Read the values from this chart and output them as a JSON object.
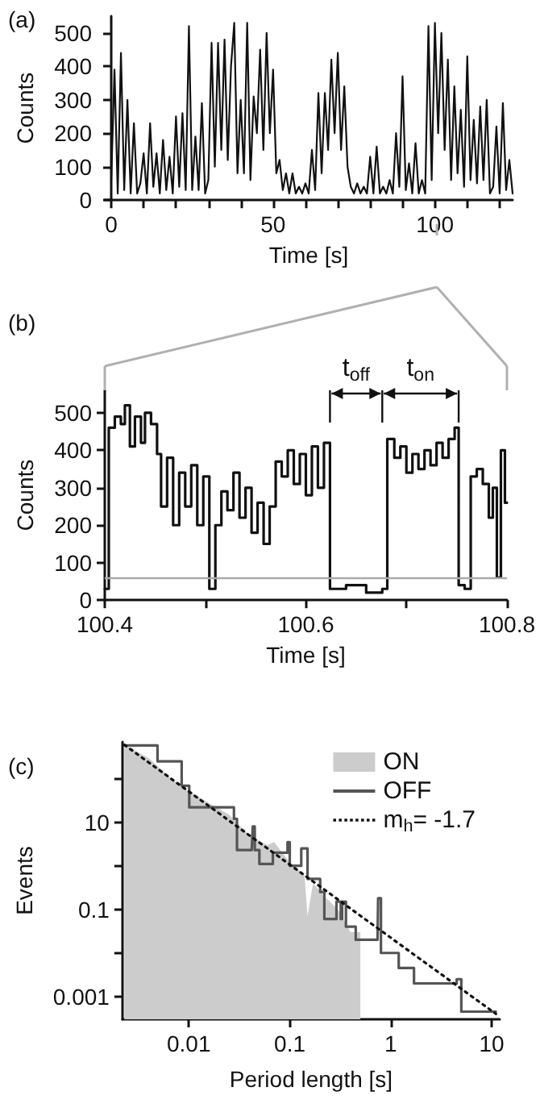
{
  "chart_data": [
    {
      "type": "line",
      "title": "(a)",
      "xlabel": "Time [s]",
      "ylabel": "Counts",
      "marker": "none",
      "x": [
        0,
        1,
        2,
        3,
        4,
        5,
        6,
        7,
        8,
        9,
        10,
        11,
        12,
        13,
        14,
        15,
        16,
        17,
        18,
        19,
        20,
        21,
        22,
        23,
        24,
        25,
        26,
        27,
        28,
        29,
        30,
        31,
        32,
        33,
        34,
        35,
        36,
        37,
        38,
        39,
        40,
        41,
        42,
        43,
        44,
        45,
        46,
        47,
        48,
        49,
        50,
        51,
        52,
        53,
        54,
        55,
        56,
        57,
        58,
        59,
        60,
        61,
        62,
        63,
        64,
        65,
        66,
        67,
        68,
        69,
        70,
        71,
        72,
        73,
        74,
        75,
        76,
        77,
        78,
        79,
        80,
        81,
        82,
        83,
        84,
        85,
        86,
        87,
        88,
        89,
        90,
        91,
        92,
        93,
        94,
        95,
        96,
        97,
        98,
        99,
        100,
        101,
        102,
        103,
        104,
        105,
        106,
        107,
        108,
        109,
        110,
        111,
        112,
        113,
        114,
        115,
        116,
        117,
        118,
        119,
        120,
        121,
        122,
        123,
        124
      ],
      "series": [
        {
          "color": "#111111",
          "values": [
            60,
            390,
            20,
            440,
            30,
            300,
            20,
            230,
            20,
            50,
            140,
            20,
            230,
            40,
            140,
            20,
            180,
            30,
            130,
            20,
            250,
            40,
            260,
            30,
            520,
            30,
            190,
            30,
            290,
            20,
            60,
            470,
            100,
            470,
            150,
            480,
            120,
            400,
            530,
            80,
            300,
            80,
            530,
            60,
            310,
            200,
            450,
            150,
            500,
            200,
            390,
            80,
            120,
            30,
            80,
            20,
            80,
            20,
            40,
            20,
            50,
            20,
            150,
            30,
            320,
            80,
            320,
            150,
            420,
            200,
            440,
            150,
            340,
            100,
            40,
            20,
            50,
            20,
            40,
            20,
            130,
            20,
            160,
            20,
            40,
            20,
            60,
            20,
            200,
            40,
            370,
            30,
            110,
            20,
            170,
            20,
            60,
            20,
            520,
            60,
            530,
            200,
            500,
            150,
            420,
            60,
            340,
            80,
            270,
            40,
            430,
            60,
            240,
            50,
            280,
            60,
            300,
            20,
            40,
            220,
            20,
            290,
            30,
            120,
            20
          ]
        }
      ],
      "xlim": [
        -2,
        124
      ],
      "xticks": [
        0,
        {
          "value": 10,
          "label": null
        },
        {
          "value": 20,
          "label": null
        },
        {
          "value": 30,
          "label": null
        },
        {
          "value": 40,
          "label": null
        },
        50,
        {
          "value": 60,
          "label": null
        },
        {
          "value": 70,
          "label": null
        },
        {
          "value": 80,
          "label": null
        },
        {
          "value": 90,
          "label": null
        },
        100,
        {
          "value": 110,
          "label": null
        },
        {
          "value": 120,
          "label": null
        }
      ],
      "ylim": [
        0,
        550
      ],
      "yticks": [
        0,
        100,
        200,
        300,
        400,
        500
      ]
    },
    {
      "type": "step",
      "title": "(b)",
      "xlabel": "Time [s]",
      "ylabel": "Counts",
      "marker": "none",
      "x": [
        100.4,
        100.404,
        100.41,
        100.416,
        100.42,
        100.425,
        100.43,
        100.436,
        100.44,
        100.446,
        100.452,
        100.456,
        100.462,
        100.468,
        100.474,
        100.48,
        100.486,
        100.492,
        100.498,
        100.504,
        100.51,
        100.516,
        100.522,
        100.528,
        100.534,
        100.54,
        100.546,
        100.552,
        100.558,
        100.564,
        100.57,
        100.576,
        100.582,
        100.588,
        100.594,
        100.6,
        100.606,
        100.612,
        100.618,
        100.624,
        100.64,
        100.66,
        100.676,
        100.681,
        100.688,
        100.694,
        100.7,
        100.706,
        100.712,
        100.718,
        100.724,
        100.73,
        100.736,
        100.742,
        100.748,
        100.752,
        100.758,
        100.764,
        100.77,
        100.776,
        100.782,
        100.786,
        100.79,
        100.794,
        100.798,
        100.8
      ],
      "series": [
        {
          "color": "#111111",
          "values": [
            30,
            460,
            490,
            470,
            520,
            410,
            490,
            420,
            500,
            470,
            390,
            250,
            380,
            200,
            340,
            250,
            360,
            200,
            330,
            30,
            200,
            290,
            240,
            340,
            220,
            300,
            180,
            260,
            150,
            250,
            370,
            330,
            400,
            310,
            390,
            280,
            410,
            300,
            420,
            30,
            40,
            20,
            30,
            430,
            380,
            410,
            340,
            390,
            350,
            400,
            360,
            420,
            380,
            430,
            460,
            40,
            30,
            330,
            350,
            310,
            220,
            300,
            60,
            400,
            260,
            260
          ]
        }
      ],
      "xlim": [
        100.4,
        100.8
      ],
      "xticks": [
        100.4,
        {
          "value": 100.5,
          "label": null
        },
        100.6,
        {
          "value": 100.7,
          "label": null
        },
        100.8
      ],
      "ylim": [
        0,
        560
      ],
      "yticks": [
        0,
        100,
        200,
        300,
        400,
        500
      ],
      "ref_lines": [
        {
          "axis": "y",
          "value": 60,
          "color": "#aaaaaa"
        },
        {
          "axis": "x",
          "value": 100.624
        },
        {
          "axis": "x",
          "value": 100.676
        },
        {
          "axis": "x",
          "value": 100.752
        }
      ],
      "annotations": [
        {
          "text": "t$_{off}$",
          "x": 100.624,
          "y": 560
        },
        {
          "text": "t$_{on}$",
          "x": 100.676,
          "y": 560
        }
      ]
    },
    {
      "type": "line",
      "title": "(c)",
      "xlabel": "Period length [s]",
      "ylabel": "Events",
      "marker": "none",
      "log": "xy",
      "legend": "top right",
      "series": [
        {
          "name": "ON",
          "type": "area",
          "color": "#cccccc",
          "x": [
            0.0023,
            0.004,
            0.008,
            0.015,
            0.025,
            0.04,
            0.06,
            0.07,
            0.1,
            0.14,
            0.15,
            0.17,
            0.22,
            0.3,
            0.4,
            0.5
          ],
          "values": [
            600,
            300,
            70,
            30,
            15,
            5,
            3,
            3.5,
            1.2,
            0.6,
            0.07,
            0.4,
            0.2,
            0.1,
            0.03,
            0.03
          ]
        },
        {
          "name": "OFF",
          "type": "step",
          "color": "#555555",
          "line_style": "solid",
          "x": [
            0.0023,
            0.0049,
            0.0085,
            0.0101,
            0.017,
            0.028,
            0.03,
            0.042,
            0.043,
            0.045,
            0.05,
            0.065,
            0.068,
            0.09,
            0.095,
            0.1,
            0.12,
            0.13,
            0.15,
            0.2,
            0.22,
            0.28,
            0.29,
            0.32,
            0.33,
            0.36,
            0.45,
            0.74,
            0.75,
            0.8,
            1.2,
            1.7,
            3.3,
            4.5,
            5,
            11
          ],
          "values": [
            580,
            250,
            69,
            22,
            22,
            12,
            2.3,
            2.3,
            8,
            2.3,
            1.1,
            1.1,
            2,
            2,
            3.5,
            1,
            1,
            2.5,
            0.5,
            0.25,
            0.06,
            0.06,
            0.15,
            0.06,
            0.15,
            0.04,
            0.02,
            0.02,
            0.18,
            0.01,
            0.0045,
            0.002,
            0.002,
            0.0025,
            0.00045,
            0.00045
          ]
        },
        {
          "name": "m$_{h}$= -1.7",
          "color": "#111111",
          "line_style": "dotted",
          "x": [
            0.0023,
            11
          ],
          "values": [
            600,
            0.0004
          ]
        }
      ],
      "xlim": [
        0.0022,
        12
      ],
      "xticks": [
        0.01,
        0.1,
        1,
        10
      ],
      "ylim": [
        0.0003,
        700
      ],
      "yticks": [
        0.001,
        {
          "value": 0.01,
          "label": null
        },
        0.1,
        {
          "value": 1,
          "label": null
        },
        10,
        {
          "value": 100,
          "label": null
        }
      ]
    }
  ]
}
